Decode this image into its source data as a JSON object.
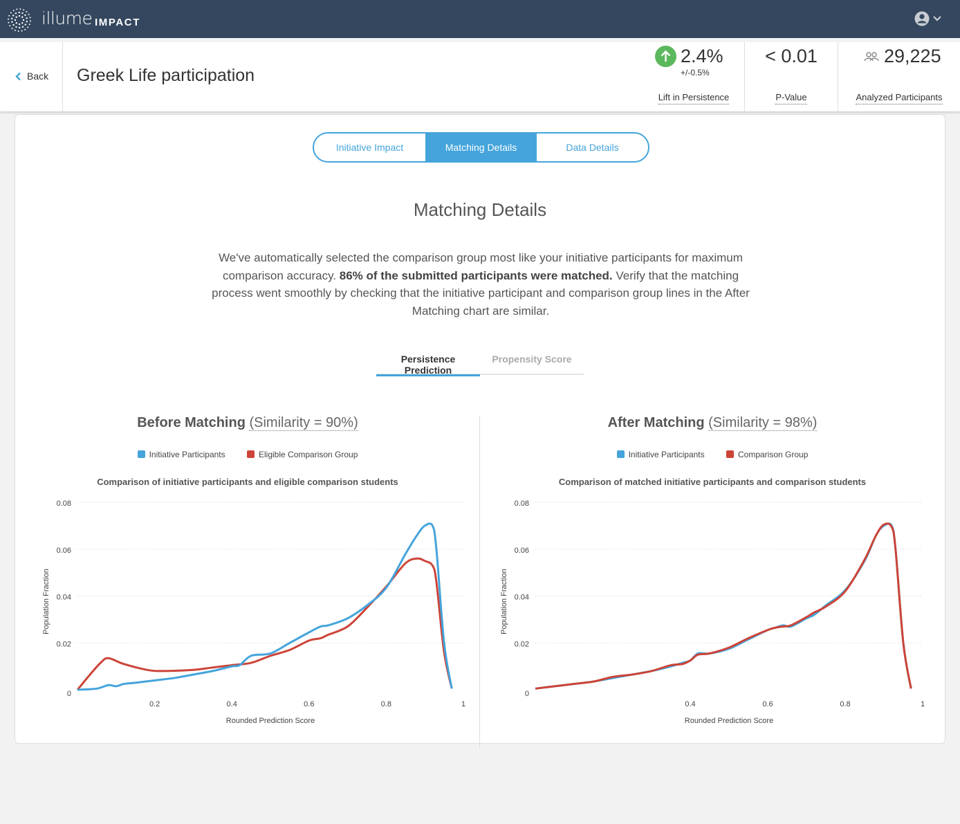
{
  "header": {
    "brand": "illume",
    "brand_sub": "IMPACT",
    "account_icon": "user-circle-icon",
    "chevron_icon": "chevron-down-icon",
    "logo_icon": "sunburst-logo-icon",
    "bg_color": "#34475e"
  },
  "subheader": {
    "back_label": "Back",
    "title": "Greek Life participation",
    "metrics": [
      {
        "value": "2.4%",
        "sub": "+/-0.5%",
        "label": "Lift in Persistence",
        "icon": "arrow-up-circle-icon",
        "icon_color": "#5cb85c"
      },
      {
        "value": "< 0.01",
        "label": "P-Value"
      },
      {
        "value": "29,225",
        "label": "Analyzed Participants",
        "icon": "people-icon"
      }
    ]
  },
  "tabs": {
    "items": [
      "Initiative Impact",
      "Matching Details",
      "Data Details"
    ],
    "active": 1,
    "accent": "#44a4db"
  },
  "content": {
    "heading": "Matching Details",
    "desc_part1": "We've automatically selected the comparison group most like your initiative participants for maximum comparison accuracy. ",
    "desc_bold": "86% of the submitted participants were matched.",
    "desc_part2": " Verify that the matching process went smoothly by checking that the initiative participant and comparison group lines in the After Matching chart are similar."
  },
  "subtabs": {
    "items": [
      "Persistence Prediction",
      "Propensity Score"
    ],
    "active": 0
  },
  "chart_data": [
    {
      "type": "line",
      "title_bold": "Before Matching",
      "title_sim": "(Similarity = 90%)",
      "subtitle": "Comparison of initiative participants and eligible comparison students",
      "xlabel": "Rounded Prediction Score",
      "ylabel": "Population Fraction",
      "xlim": [
        0,
        1
      ],
      "ylim": [
        0,
        0.08
      ],
      "xticks": [
        "0.2",
        "0.4",
        "0.6",
        "0.8",
        "1"
      ],
      "yticks": [
        "0",
        "0.02",
        "0.04",
        "0.06",
        "0.08"
      ],
      "grid": true,
      "series": [
        {
          "name": "Initiative Participants",
          "color": "#44a4db",
          "x": [
            0.0,
            0.05,
            0.08,
            0.1,
            0.12,
            0.15,
            0.2,
            0.25,
            0.3,
            0.35,
            0.4,
            0.42,
            0.45,
            0.5,
            0.55,
            0.6,
            0.63,
            0.65,
            0.7,
            0.75,
            0.8,
            0.85,
            0.88,
            0.9,
            0.92,
            0.93,
            0.95,
            0.97
          ],
          "y": [
            0.0,
            0.0005,
            0.002,
            0.0015,
            0.0025,
            0.003,
            0.004,
            0.005,
            0.0065,
            0.008,
            0.01,
            0.0105,
            0.0145,
            0.0155,
            0.02,
            0.0245,
            0.027,
            0.0275,
            0.0305,
            0.036,
            0.0435,
            0.058,
            0.066,
            0.07,
            0.07,
            0.06,
            0.02,
            0.0005
          ]
        },
        {
          "name": "Eligible Comparison Group",
          "color": "#cc4438",
          "x": [
            0.0,
            0.03,
            0.06,
            0.08,
            0.12,
            0.18,
            0.22,
            0.3,
            0.35,
            0.4,
            0.45,
            0.5,
            0.55,
            0.6,
            0.63,
            0.65,
            0.7,
            0.75,
            0.8,
            0.85,
            0.88,
            0.9,
            0.92,
            0.93,
            0.95,
            0.97
          ],
          "y": [
            0.0,
            0.006,
            0.0115,
            0.0135,
            0.011,
            0.0085,
            0.008,
            0.0085,
            0.0095,
            0.0105,
            0.0115,
            0.0145,
            0.017,
            0.021,
            0.022,
            0.0235,
            0.027,
            0.035,
            0.044,
            0.054,
            0.056,
            0.055,
            0.053,
            0.046,
            0.016,
            0.0005
          ]
        }
      ]
    },
    {
      "type": "line",
      "title_bold": "After Matching",
      "title_sim": "(Similarity = 98%)",
      "subtitle": "Comparison of matched initiative participants and comparison students",
      "xlabel": "Rounded Prediction Score",
      "ylabel": "Population Fraction",
      "xlim": [
        0,
        1
      ],
      "ylim": [
        0,
        0.08
      ],
      "xticks": [
        "0.4",
        "0.6",
        "0.8",
        "1"
      ],
      "yticks": [
        "0",
        "0.02",
        "0.04",
        "0.06",
        "0.08"
      ],
      "grid": true,
      "series": [
        {
          "name": "Initiative Participants",
          "color": "#44a4db",
          "x": [
            0.0,
            0.05,
            0.1,
            0.15,
            0.2,
            0.25,
            0.3,
            0.35,
            0.38,
            0.4,
            0.42,
            0.45,
            0.5,
            0.55,
            0.6,
            0.62,
            0.64,
            0.66,
            0.7,
            0.72,
            0.75,
            0.8,
            0.85,
            0.88,
            0.9,
            0.92,
            0.93,
            0.95,
            0.97
          ],
          "y": [
            0.0005,
            0.0015,
            0.0025,
            0.0035,
            0.005,
            0.0065,
            0.008,
            0.01,
            0.0115,
            0.0125,
            0.0155,
            0.0155,
            0.0175,
            0.0215,
            0.0255,
            0.0265,
            0.0275,
            0.027,
            0.0305,
            0.032,
            0.036,
            0.0425,
            0.055,
            0.066,
            0.07,
            0.07,
            0.06,
            0.02,
            0.0005
          ]
        },
        {
          "name": "Comparison Group",
          "color": "#cc4438",
          "x": [
            0.0,
            0.05,
            0.1,
            0.15,
            0.2,
            0.25,
            0.3,
            0.35,
            0.38,
            0.4,
            0.42,
            0.45,
            0.5,
            0.55,
            0.6,
            0.62,
            0.64,
            0.66,
            0.7,
            0.72,
            0.75,
            0.8,
            0.85,
            0.88,
            0.9,
            0.92,
            0.93,
            0.95,
            0.97
          ],
          "y": [
            0.0005,
            0.0015,
            0.0025,
            0.0035,
            0.0055,
            0.0065,
            0.008,
            0.0105,
            0.011,
            0.0125,
            0.015,
            0.0155,
            0.018,
            0.022,
            0.0255,
            0.0265,
            0.027,
            0.0275,
            0.031,
            0.033,
            0.0355,
            0.042,
            0.0555,
            0.066,
            0.0705,
            0.0695,
            0.06,
            0.02,
            0.0005
          ]
        }
      ]
    }
  ]
}
